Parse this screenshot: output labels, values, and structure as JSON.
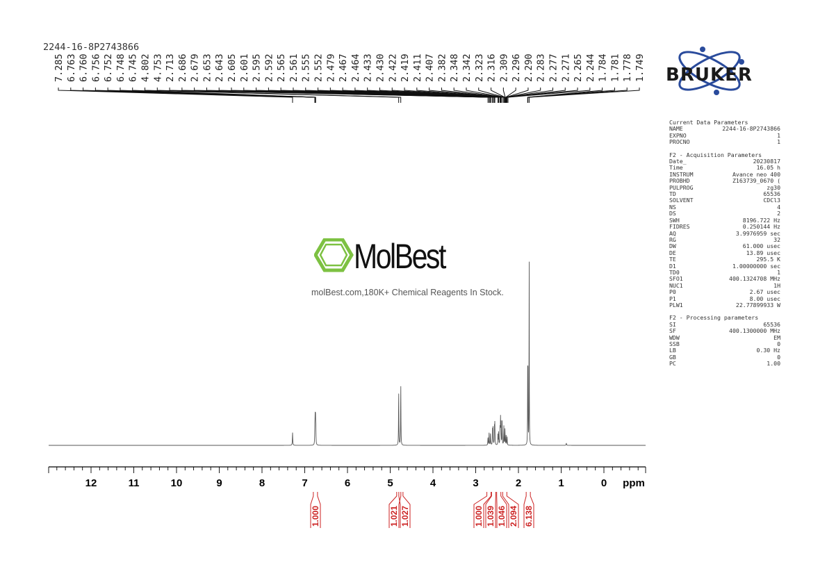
{
  "sample_name": "2244-16-8P2743866",
  "watermark": {
    "name": "MolBest",
    "tagline": "molBest.com,180K+ Chemical Reagents In Stock."
  },
  "logo_text": "BRUKER",
  "colors": {
    "spectrum": "#555555",
    "integral": "#cc2222",
    "axis": "#000000",
    "watermark_hex": "#7dc142",
    "logo_blue": "#2a4b9c"
  },
  "peak_labels": [
    "7.285",
    "6.763",
    "6.760",
    "6.756",
    "6.752",
    "6.748",
    "6.745",
    "4.802",
    "4.753",
    "2.713",
    "2.686",
    "2.679",
    "2.653",
    "2.643",
    "2.605",
    "2.601",
    "2.595",
    "2.592",
    "2.565",
    "2.561",
    "2.555",
    "2.552",
    "2.479",
    "2.467",
    "2.464",
    "2.433",
    "2.430",
    "2.422",
    "2.419",
    "2.411",
    "2.407",
    "2.382",
    "2.348",
    "2.342",
    "2.323",
    "2.316",
    "2.309",
    "2.296",
    "2.290",
    "2.283",
    "2.277",
    "2.271",
    "2.265",
    "2.244",
    "1.784",
    "1.781",
    "1.778",
    "1.749"
  ],
  "params": {
    "sections": [
      {
        "title": "Current Data Parameters",
        "rows": [
          [
            "NAME",
            "2244-16-8P2743866"
          ],
          [
            "EXPNO",
            "1"
          ],
          [
            "PROCNO",
            "1"
          ]
        ]
      },
      {
        "title": "F2 - Acquisition Parameters",
        "rows": [
          [
            "Date_",
            "20230817"
          ],
          [
            "Time",
            "16.05 h"
          ],
          [
            "INSTRUM",
            "Avance neo 400"
          ],
          [
            "PROBHD",
            "Z163739_0670 ("
          ],
          [
            "PULPROG",
            "zg30"
          ],
          [
            "TD",
            "65536"
          ],
          [
            "SOLVENT",
            "CDCl3"
          ],
          [
            "NS",
            "4"
          ],
          [
            "DS",
            "2"
          ],
          [
            "SWH",
            "8196.722 Hz"
          ],
          [
            "FIDRES",
            "0.250144 Hz"
          ],
          [
            "AQ",
            "3.9976959 sec"
          ],
          [
            "RG",
            "32"
          ],
          [
            "DW",
            "61.000 usec"
          ],
          [
            "DE",
            "13.89 usec"
          ],
          [
            "TE",
            "295.5 K"
          ],
          [
            "D1",
            "1.00000000 sec"
          ],
          [
            "TD0",
            "1"
          ],
          [
            "SFO1",
            "400.1324708 MHz"
          ],
          [
            "NUC1",
            "1H"
          ],
          [
            "P0",
            "2.67 usec"
          ],
          [
            "P1",
            "8.00 usec"
          ],
          [
            "PLW1",
            "22.77899933 W"
          ]
        ]
      },
      {
        "title": "F2 - Processing parameters",
        "rows": [
          [
            "SI",
            "65536"
          ],
          [
            "SF",
            "400.1300000 MHz"
          ],
          [
            "WDW",
            "EM"
          ],
          [
            "SSB",
            "0"
          ],
          [
            "LB",
            "0.30 Hz"
          ],
          [
            "GB",
            "0"
          ],
          [
            "PC",
            "1.00"
          ]
        ]
      }
    ]
  },
  "chart_data": {
    "type": "line",
    "xlabel": "ppm",
    "xlim": [
      14.0,
      -0.5
    ],
    "x_reversed": true,
    "major_ticks": [
      12,
      11,
      10,
      9,
      8,
      7,
      6,
      5,
      4,
      3,
      2,
      1,
      0
    ],
    "minor_tick_step": 0.2,
    "peaks": [
      {
        "ppm": 7.285,
        "height": 0.06,
        "width": 0.005
      },
      {
        "ppm": 6.763,
        "height": 0.08,
        "width": 0.004
      },
      {
        "ppm": 6.756,
        "height": 0.11,
        "width": 0.004
      },
      {
        "ppm": 6.748,
        "height": 0.11,
        "width": 0.004
      },
      {
        "ppm": 6.741,
        "height": 0.07,
        "width": 0.004
      },
      {
        "ppm": 4.802,
        "height": 0.26,
        "width": 0.004
      },
      {
        "ppm": 4.753,
        "height": 0.29,
        "width": 0.004
      },
      {
        "ppm": 2.713,
        "height": 0.04,
        "width": 0.004
      },
      {
        "ppm": 2.686,
        "height": 0.06,
        "width": 0.004
      },
      {
        "ppm": 2.653,
        "height": 0.06,
        "width": 0.004
      },
      {
        "ppm": 2.605,
        "height": 0.07,
        "width": 0.004
      },
      {
        "ppm": 2.595,
        "height": 0.09,
        "width": 0.004
      },
      {
        "ppm": 2.561,
        "height": 0.08,
        "width": 0.004
      },
      {
        "ppm": 2.552,
        "height": 0.1,
        "width": 0.004
      },
      {
        "ppm": 2.479,
        "height": 0.05,
        "width": 0.004
      },
      {
        "ppm": 2.464,
        "height": 0.06,
        "width": 0.004
      },
      {
        "ppm": 2.43,
        "height": 0.08,
        "width": 0.004
      },
      {
        "ppm": 2.419,
        "height": 0.12,
        "width": 0.004
      },
      {
        "ppm": 2.407,
        "height": 0.1,
        "width": 0.004
      },
      {
        "ppm": 2.382,
        "height": 0.11,
        "width": 0.004
      },
      {
        "ppm": 2.342,
        "height": 0.09,
        "width": 0.004
      },
      {
        "ppm": 2.316,
        "height": 0.08,
        "width": 0.004
      },
      {
        "ppm": 2.29,
        "height": 0.05,
        "width": 0.004
      },
      {
        "ppm": 2.265,
        "height": 0.04,
        "width": 0.004
      },
      {
        "ppm": 1.784,
        "height": 0.3,
        "width": 0.003
      },
      {
        "ppm": 1.778,
        "height": 0.4,
        "width": 0.003
      },
      {
        "ppm": 1.749,
        "height": 0.95,
        "width": 0.003
      },
      {
        "ppm": 0.88,
        "height": 0.01,
        "width": 0.006
      }
    ],
    "integrals": [
      {
        "ppm": 6.75,
        "value": "1.000"
      },
      {
        "ppm": 4.8,
        "value": "1.021"
      },
      {
        "ppm": 4.75,
        "value": "1.027"
      },
      {
        "ppm": 2.69,
        "value": "1.000"
      },
      {
        "ppm": 2.58,
        "value": "1.039"
      },
      {
        "ppm": 2.46,
        "value": "1.046"
      },
      {
        "ppm": 2.32,
        "value": "2.094"
      },
      {
        "ppm": 1.77,
        "value": "6.138"
      }
    ]
  }
}
